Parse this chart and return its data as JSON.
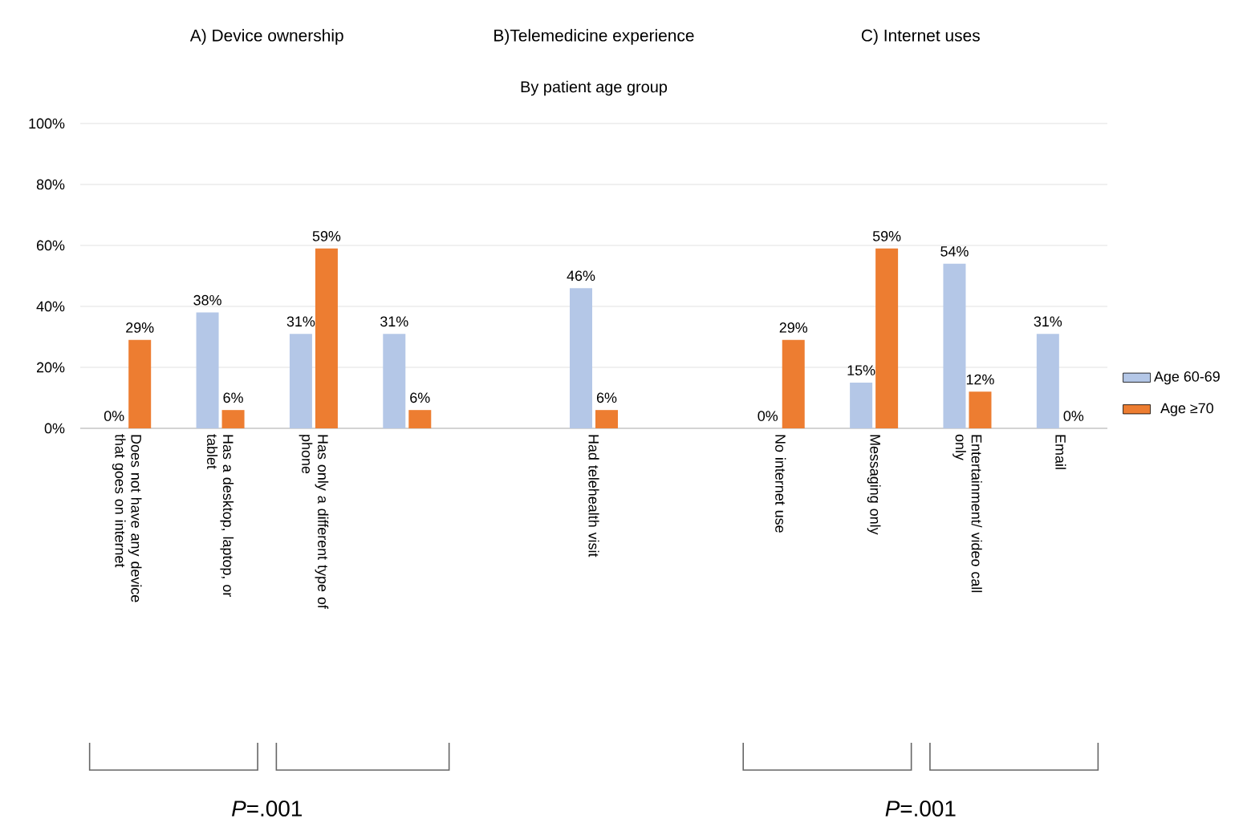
{
  "chart_data": {
    "type": "bar",
    "subtitle": "By patient age group",
    "categories": [
      "Does not have any device that goes on internet",
      "Has a desktop, laptop, or tablet",
      "Has only a different type of phone",
      null,
      null,
      "Had telehealth visit",
      null,
      "No internet use",
      "Messaging only",
      "Entertainment/ video call only",
      "Email"
    ],
    "series": [
      {
        "name": "Age 60-69",
        "color": "#b4c7e7",
        "values": [
          0,
          38,
          31,
          31,
          null,
          46,
          null,
          0,
          15,
          54,
          31
        ],
        "value_labels": [
          "0%",
          "38%",
          "31%",
          "31%",
          null,
          "46%",
          null,
          "0%",
          "15%",
          "54%",
          "31%"
        ]
      },
      {
        "name": "Age ≥70",
        "color": "#ed7d31",
        "values": [
          29,
          6,
          59,
          6,
          null,
          6,
          null,
          29,
          59,
          12,
          0
        ],
        "value_labels": [
          "29%",
          "6%",
          "59%",
          "6%",
          null,
          "6%",
          null,
          "29%",
          "59%",
          "12%",
          "0%"
        ]
      }
    ],
    "ylim": [
      0,
      100
    ],
    "yticks": [
      {
        "value": 0,
        "label": "0%"
      },
      {
        "value": 20,
        "label": "20%"
      },
      {
        "value": 40,
        "label": "40%"
      },
      {
        "value": 60,
        "label": "60%"
      },
      {
        "value": 80,
        "label": "80%"
      },
      {
        "value": 100,
        "label": "100%"
      }
    ],
    "grid": "y",
    "legend": "right",
    "annotations": [
      "A) Device ownership",
      "B)Telemedicine experience",
      "C) Internet uses",
      "*P*=.001",
      "*P*=.001"
    ]
  }
}
